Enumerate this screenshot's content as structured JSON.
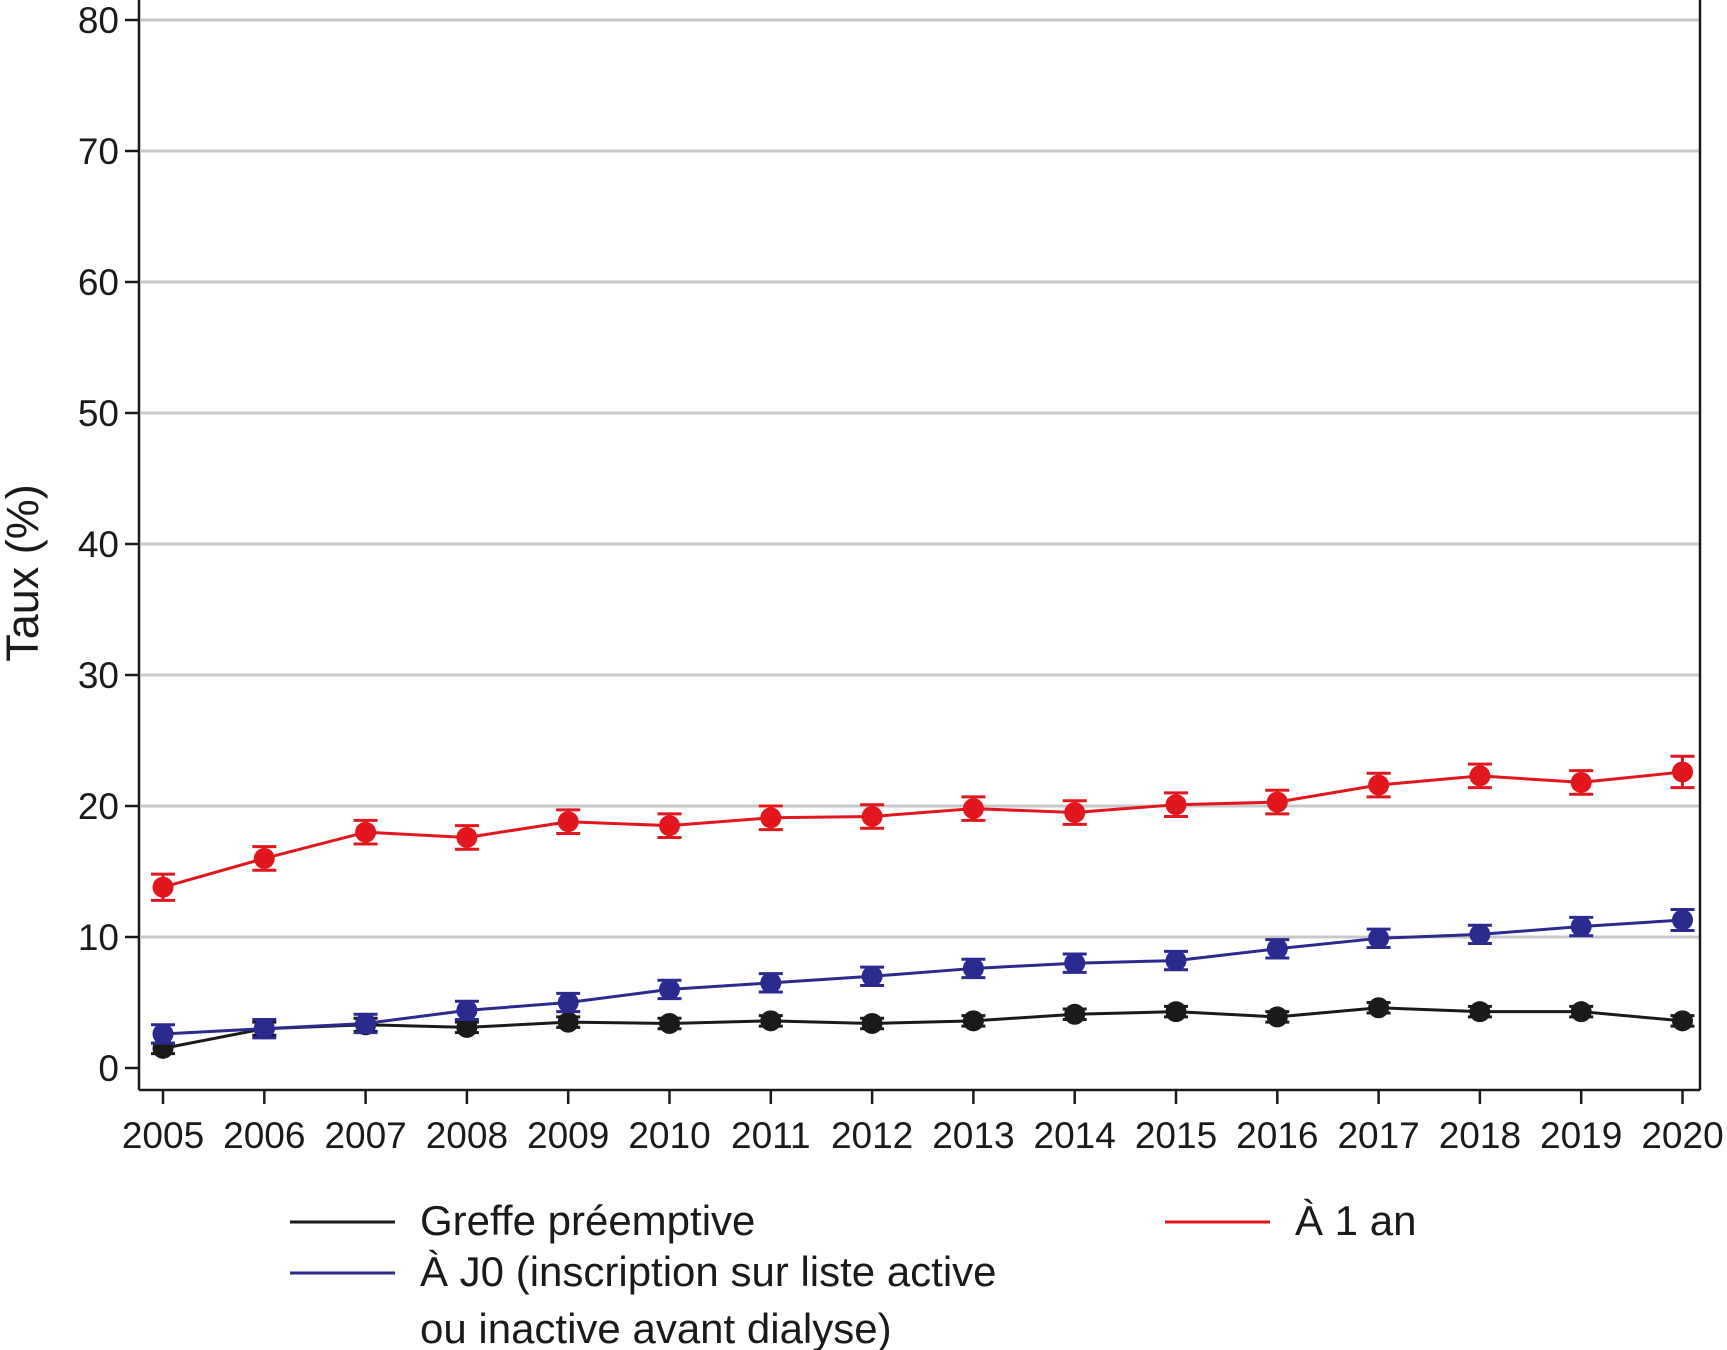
{
  "chart_data": {
    "type": "line",
    "title": "",
    "xlabel": "",
    "ylabel": "Taux (%)",
    "ylim": [
      0,
      80
    ],
    "yticks": [
      0,
      10,
      20,
      30,
      40,
      50,
      60,
      70,
      80
    ],
    "grid": true,
    "x": [
      "2005",
      "2006",
      "2007",
      "2008",
      "2009",
      "2010",
      "2011",
      "2012",
      "2013",
      "2014",
      "2015",
      "2016",
      "2017",
      "2018",
      "2019",
      "2020"
    ],
    "series": [
      {
        "name": "Greffe préemptive",
        "color": "#1a1a1a",
        "values": [
          1.5,
          3.0,
          3.3,
          3.1,
          3.5,
          3.4,
          3.6,
          3.4,
          3.6,
          4.1,
          4.3,
          3.9,
          4.6,
          4.3,
          4.3,
          3.6
        ],
        "err": [
          0.4,
          0.5,
          0.5,
          0.4,
          0.4,
          0.4,
          0.4,
          0.4,
          0.4,
          0.4,
          0.4,
          0.4,
          0.4,
          0.4,
          0.4,
          0.4
        ]
      },
      {
        "name": "À J0 (inscription sur liste active ou inactive avant dialyse)",
        "name_lines": [
          "À J0 (inscription sur liste active",
          "ou inactive avant dialyse)"
        ],
        "color": "#2b2a8f",
        "values": [
          2.6,
          3.0,
          3.4,
          4.4,
          5.0,
          6.0,
          6.5,
          7.0,
          7.6,
          8.0,
          8.2,
          9.1,
          9.9,
          10.2,
          10.8,
          11.3
        ],
        "err": [
          0.7,
          0.7,
          0.7,
          0.7,
          0.7,
          0.7,
          0.7,
          0.7,
          0.7,
          0.7,
          0.7,
          0.7,
          0.7,
          0.7,
          0.7,
          0.8
        ]
      },
      {
        "name": "À 1 an",
        "color": "#e2171e",
        "values": [
          13.8,
          16.0,
          18.0,
          17.6,
          18.8,
          18.5,
          19.1,
          19.2,
          19.8,
          19.5,
          20.1,
          20.3,
          21.6,
          22.3,
          21.8,
          22.6
        ],
        "err": [
          1.0,
          0.9,
          0.9,
          0.9,
          0.9,
          0.9,
          0.9,
          0.9,
          0.9,
          0.9,
          0.9,
          0.9,
          0.9,
          0.9,
          0.9,
          1.2
        ]
      }
    ],
    "legend_position": "bottom"
  },
  "colors": {
    "grid": "#c8c8c8",
    "axis": "#1a1a1a"
  }
}
